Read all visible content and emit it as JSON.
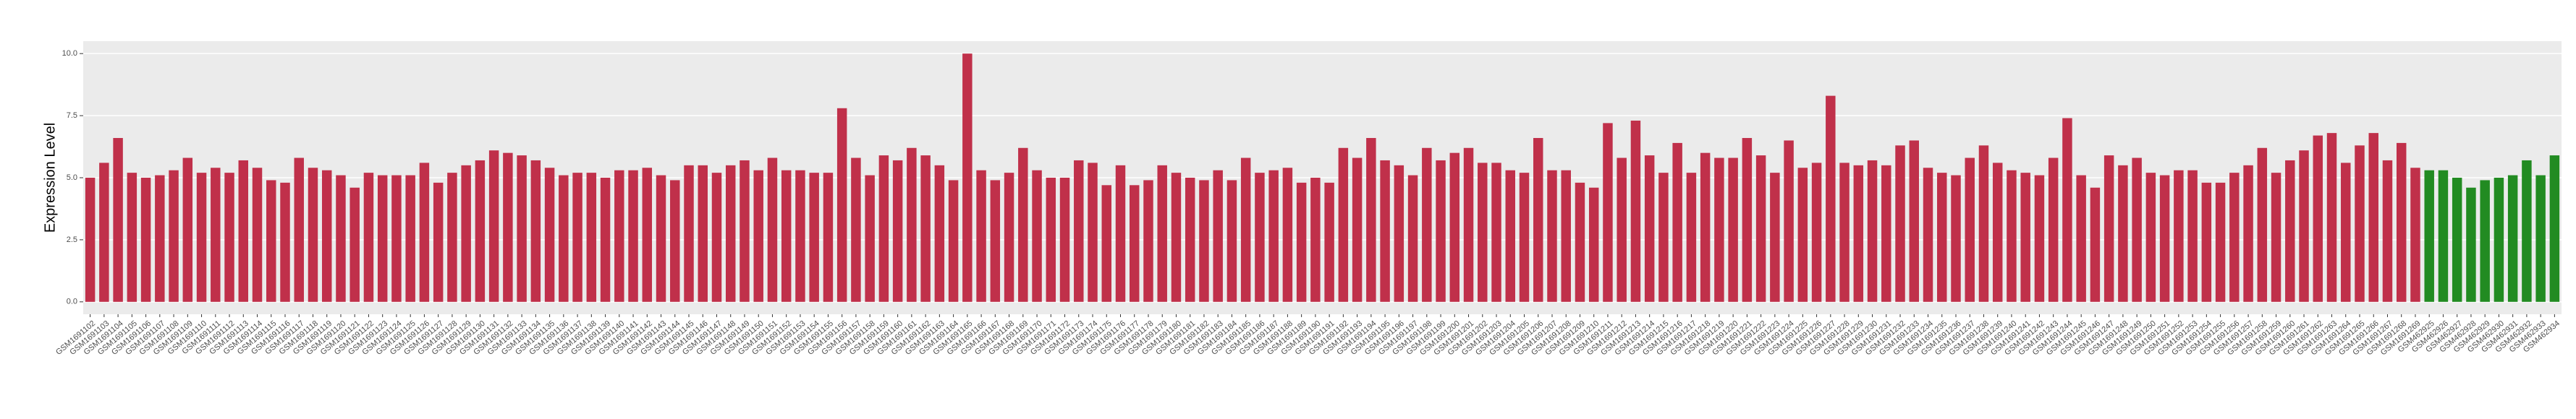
{
  "chart_data": {
    "type": "bar",
    "y_label": "Expression Level",
    "categories": [
      "GSM1691102",
      "GSM1691103",
      "GSM1691104",
      "GSM1691105",
      "GSM1691106",
      "GSM1691107",
      "GSM1691108",
      "GSM1691109",
      "GSM1691110",
      "GSM1691111",
      "GSM1691112",
      "GSM1691113",
      "GSM1691114",
      "GSM1691115",
      "GSM1691116",
      "GSM1691117",
      "GSM1691118",
      "GSM1691119",
      "GSM1691120",
      "GSM1691121",
      "GSM1691122",
      "GSM1691123",
      "GSM1691124",
      "GSM1691125",
      "GSM1691126",
      "GSM1691127",
      "GSM1691128",
      "GSM1691129",
      "GSM1691130",
      "GSM1691131",
      "GSM1691132",
      "GSM1691133",
      "GSM1691134",
      "GSM1691135",
      "GSM1691136",
      "GSM1691137",
      "GSM1691138",
      "GSM1691139",
      "GSM1691140",
      "GSM1691141",
      "GSM1691142",
      "GSM1691143",
      "GSM1691144",
      "GSM1691145",
      "GSM1691146",
      "GSM1691147",
      "GSM1691148",
      "GSM1691149",
      "GSM1691150",
      "GSM1691151",
      "GSM1691152",
      "GSM1691153",
      "GSM1691154",
      "GSM1691155",
      "GSM1691156",
      "GSM1691157",
      "GSM1691158",
      "GSM1691159",
      "GSM1691160",
      "GSM1691161",
      "GSM1691162",
      "GSM1691163",
      "GSM1691164",
      "GSM1691165",
      "GSM1691166",
      "GSM1691167",
      "GSM1691168",
      "GSM1691169",
      "GSM1691170",
      "GSM1691171",
      "GSM1691172",
      "GSM1691173",
      "GSM1691174",
      "GSM1691175",
      "GSM1691176",
      "GSM1691177",
      "GSM1691178",
      "GSM1691179",
      "GSM1691180",
      "GSM1691181",
      "GSM1691182",
      "GSM1691183",
      "GSM1691184",
      "GSM1691185",
      "GSM1691186",
      "GSM1691187",
      "GSM1691188",
      "GSM1691189",
      "GSM1691190",
      "GSM1691191",
      "GSM1691192",
      "GSM1691193",
      "GSM1691194",
      "GSM1691195",
      "GSM1691196",
      "GSM1691197",
      "GSM1691198",
      "GSM1691199",
      "GSM1691200",
      "GSM1691201",
      "GSM1691202",
      "GSM1691203",
      "GSM1691204",
      "GSM1691205",
      "GSM1691206",
      "GSM1691207",
      "GSM1691208",
      "GSM1691209",
      "GSM1691210",
      "GSM1691211",
      "GSM1691212",
      "GSM1691213",
      "GSM1691214",
      "GSM1691215",
      "GSM1691216",
      "GSM1691217",
      "GSM1691218",
      "GSM1691219",
      "GSM1691220",
      "GSM1691221",
      "GSM1691222",
      "GSM1691223",
      "GSM1691224",
      "GSM1691225",
      "GSM1691226",
      "GSM1691227",
      "GSM1691228",
      "GSM1691229",
      "GSM1691230",
      "GSM1691231",
      "GSM1691232",
      "GSM1691233",
      "GSM1691234",
      "GSM1691235",
      "GSM1691236",
      "GSM1691237",
      "GSM1691238",
      "GSM1691239",
      "GSM1691240",
      "GSM1691241",
      "GSM1691242",
      "GSM1691243",
      "GSM1691244",
      "GSM1691245",
      "GSM1691246",
      "GSM1691247",
      "GSM1691248",
      "GSM1691249",
      "GSM1691250",
      "GSM1691251",
      "GSM1691252",
      "GSM1691253",
      "GSM1691254",
      "GSM1691255",
      "GSM1691256",
      "GSM1691257",
      "GSM1691258",
      "GSM1691259",
      "GSM1691260",
      "GSM1691261",
      "GSM1691262",
      "GSM1691263",
      "GSM1691264",
      "GSM1691265",
      "GSM1691266",
      "GSM1691267",
      "GSM1691268",
      "GSM1691269",
      "GSM462925",
      "GSM462926",
      "GSM462927",
      "GSM462928",
      "GSM462929",
      "GSM462930",
      "GSM462931",
      "GSM462932",
      "GSM462933",
      "GSM462934"
    ],
    "values": [
      5.0,
      5.6,
      6.6,
      5.2,
      5.0,
      5.1,
      5.3,
      5.8,
      5.2,
      5.4,
      5.2,
      5.7,
      5.4,
      4.9,
      4.8,
      5.8,
      5.4,
      5.3,
      5.1,
      4.6,
      5.2,
      5.1,
      5.1,
      5.1,
      5.6,
      4.8,
      5.2,
      5.5,
      5.7,
      6.1,
      6.0,
      5.9,
      5.7,
      5.4,
      5.1,
      5.2,
      5.2,
      5.0,
      5.3,
      5.3,
      5.4,
      5.1,
      4.9,
      5.5,
      5.5,
      5.2,
      5.5,
      5.7,
      5.3,
      5.8,
      5.3,
      5.3,
      5.2,
      5.2,
      7.8,
      5.8,
      5.1,
      5.9,
      5.7,
      6.2,
      5.9,
      5.5,
      4.9,
      10.0,
      5.3,
      4.9,
      5.2,
      6.2,
      5.3,
      5.0,
      5.0,
      5.7,
      5.6,
      4.7,
      5.5,
      4.7,
      4.9,
      5.5,
      5.2,
      5.0,
      4.9,
      5.3,
      4.9,
      5.8,
      5.2,
      5.3,
      5.4,
      4.8,
      5.0,
      4.8,
      6.2,
      5.8,
      6.6,
      5.7,
      5.5,
      5.1,
      6.2,
      5.7,
      6.0,
      6.2,
      5.6,
      5.6,
      5.3,
      5.2,
      6.6,
      5.3,
      5.3,
      4.8,
      4.6,
      7.2,
      5.8,
      7.3,
      5.9,
      5.2,
      6.4,
      5.2,
      6.0,
      5.8,
      5.8,
      6.6,
      5.9,
      5.2,
      6.5,
      5.4,
      5.6,
      8.3,
      5.6,
      5.5,
      5.7,
      5.5,
      6.3,
      6.5,
      5.4,
      5.2,
      5.1,
      5.8,
      6.3,
      5.6,
      5.3,
      5.2,
      5.1,
      5.8,
      7.4,
      5.1,
      4.6,
      5.9,
      5.5,
      5.8,
      5.2,
      5.1,
      5.3,
      5.3,
      4.8,
      4.8,
      5.2,
      5.5,
      6.2,
      5.2,
      5.7,
      6.1,
      6.7,
      6.8,
      5.6,
      6.3,
      6.8,
      5.7,
      6.4,
      5.4,
      5.3,
      5.3,
      5.0,
      4.6,
      4.9,
      5.0,
      5.1,
      5.7,
      5.1,
      5.9
    ],
    "colors": [
      "#c0304a",
      "#c0304a",
      "#c0304a",
      "#c0304a",
      "#c0304a",
      "#c0304a",
      "#c0304a",
      "#c0304a",
      "#c0304a",
      "#c0304a",
      "#c0304a",
      "#c0304a",
      "#c0304a",
      "#c0304a",
      "#c0304a",
      "#c0304a",
      "#c0304a",
      "#c0304a",
      "#c0304a",
      "#c0304a",
      "#c0304a",
      "#c0304a",
      "#c0304a",
      "#c0304a",
      "#c0304a",
      "#c0304a",
      "#c0304a",
      "#c0304a",
      "#c0304a",
      "#c0304a",
      "#c0304a",
      "#c0304a",
      "#c0304a",
      "#c0304a",
      "#c0304a",
      "#c0304a",
      "#c0304a",
      "#c0304a",
      "#c0304a",
      "#c0304a",
      "#c0304a",
      "#c0304a",
      "#c0304a",
      "#c0304a",
      "#c0304a",
      "#c0304a",
      "#c0304a",
      "#c0304a",
      "#c0304a",
      "#c0304a",
      "#c0304a",
      "#c0304a",
      "#c0304a",
      "#c0304a",
      "#c0304a",
      "#c0304a",
      "#c0304a",
      "#c0304a",
      "#c0304a",
      "#c0304a",
      "#c0304a",
      "#c0304a",
      "#c0304a",
      "#c0304a",
      "#c0304a",
      "#c0304a",
      "#c0304a",
      "#c0304a",
      "#c0304a",
      "#c0304a",
      "#c0304a",
      "#c0304a",
      "#c0304a",
      "#c0304a",
      "#c0304a",
      "#c0304a",
      "#c0304a",
      "#c0304a",
      "#c0304a",
      "#c0304a",
      "#c0304a",
      "#c0304a",
      "#c0304a",
      "#c0304a",
      "#c0304a",
      "#c0304a",
      "#c0304a",
      "#c0304a",
      "#c0304a",
      "#c0304a",
      "#c0304a",
      "#c0304a",
      "#c0304a",
      "#c0304a",
      "#c0304a",
      "#c0304a",
      "#c0304a",
      "#c0304a",
      "#c0304a",
      "#c0304a",
      "#c0304a",
      "#c0304a",
      "#c0304a",
      "#c0304a",
      "#c0304a",
      "#c0304a",
      "#c0304a",
      "#c0304a",
      "#c0304a",
      "#c0304a",
      "#c0304a",
      "#c0304a",
      "#c0304a",
      "#c0304a",
      "#c0304a",
      "#c0304a",
      "#c0304a",
      "#c0304a",
      "#c0304a",
      "#c0304a",
      "#c0304a",
      "#c0304a",
      "#c0304a",
      "#c0304a",
      "#c0304a",
      "#c0304a",
      "#c0304a",
      "#c0304a",
      "#c0304a",
      "#c0304a",
      "#c0304a",
      "#c0304a",
      "#c0304a",
      "#c0304a",
      "#c0304a",
      "#c0304a",
      "#c0304a",
      "#c0304a",
      "#c0304a",
      "#c0304a",
      "#c0304a",
      "#c0304a",
      "#c0304a",
      "#c0304a",
      "#c0304a",
      "#c0304a",
      "#c0304a",
      "#c0304a",
      "#c0304a",
      "#c0304a",
      "#c0304a",
      "#c0304a",
      "#c0304a",
      "#c0304a",
      "#c0304a",
      "#c0304a",
      "#c0304a",
      "#c0304a",
      "#c0304a",
      "#c0304a",
      "#c0304a",
      "#c0304a",
      "#c0304a",
      "#c0304a",
      "#c0304a",
      "#c0304a",
      "#c0304a",
      "#c0304a",
      "#228b22",
      "#228b22",
      "#228b22",
      "#228b22",
      "#228b22",
      "#228b22",
      "#228b22",
      "#228b22",
      "#228b22",
      "#228b22"
    ],
    "ylim": [
      -0.5,
      10.5
    ],
    "yticks": [
      {
        "value": 0,
        "label": "0.0"
      },
      {
        "value": 2.5,
        "label": "2.5"
      },
      {
        "value": 5,
        "label": "5.0"
      },
      {
        "value": 7.5,
        "label": "7.5"
      },
      {
        "value": 10,
        "label": "10.0"
      }
    ],
    "grid": true
  }
}
